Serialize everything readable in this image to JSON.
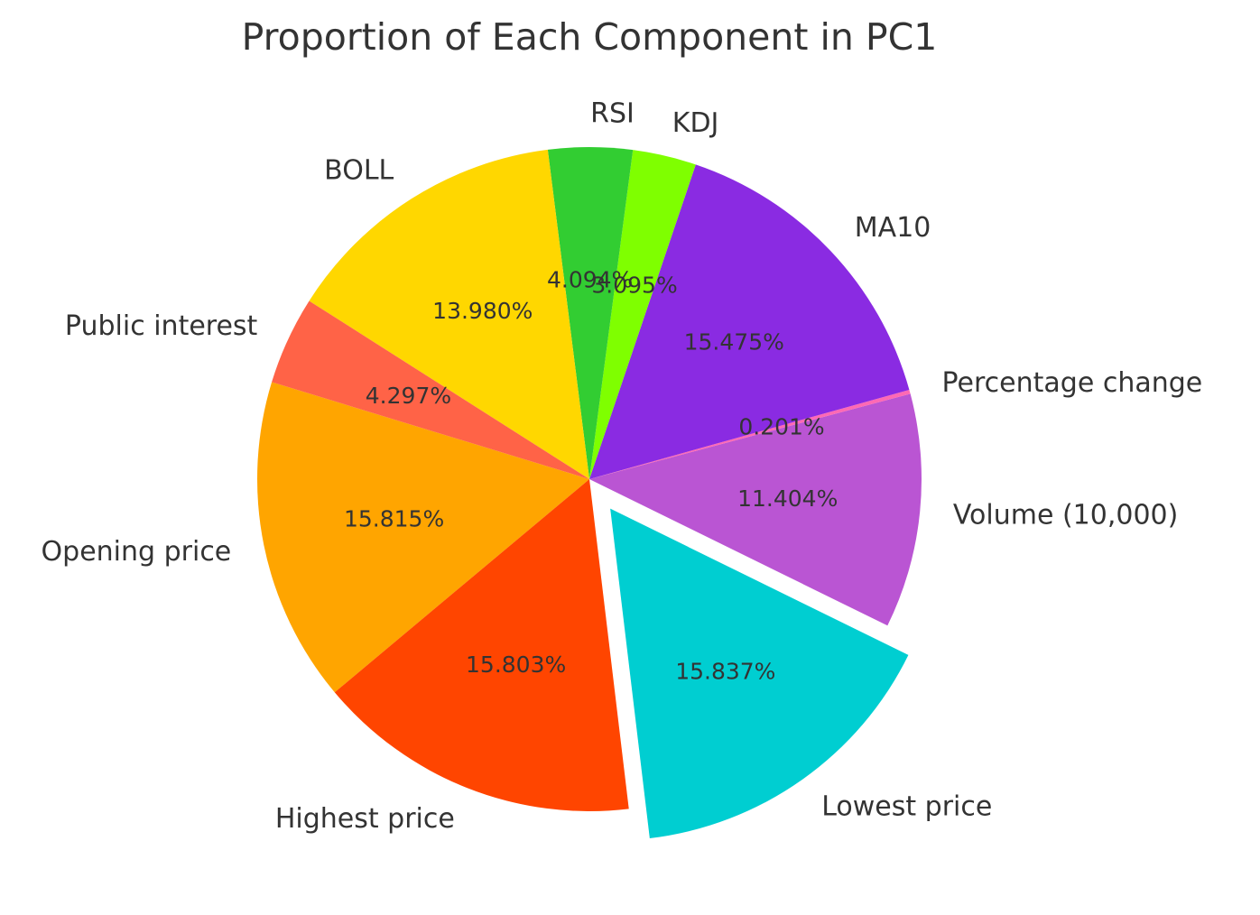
{
  "chart_data": {
    "type": "pie",
    "title": "Proportion of Each Component in PC1",
    "slices": [
      {
        "label": "Opening price",
        "value": 15.815,
        "pct_label": "15.815%",
        "color": "#FFA500"
      },
      {
        "label": "Highest price",
        "value": 15.803,
        "pct_label": "15.803%",
        "color": "#FF4500"
      },
      {
        "label": "Lowest price",
        "value": 15.837,
        "pct_label": "15.837%",
        "color": "#00CED1",
        "exploded": true
      },
      {
        "label": "Volume (10,000)",
        "value": 11.404,
        "pct_label": "11.404%",
        "color": "#BA55D3"
      },
      {
        "label": "Percentage change",
        "value": 0.201,
        "pct_label": "0.201%",
        "color": "#FF69B4"
      },
      {
        "label": "MA10",
        "value": 15.475,
        "pct_label": "15.475%",
        "color": "#8A2BE2"
      },
      {
        "label": "KDJ",
        "value": 3.095,
        "pct_label": "3.095%",
        "color": "#7FFF00"
      },
      {
        "label": "RSI",
        "value": 4.094,
        "pct_label": "4.094%",
        "color": "#32CD32"
      },
      {
        "label": "BOLL",
        "value": 13.98,
        "pct_label": "13.980%",
        "color": "#FFD700"
      },
      {
        "label": "Public interest",
        "value": 4.297,
        "pct_label": "4.297%",
        "color": "#FF6347"
      }
    ],
    "start_angle_deg": 163,
    "direction": "counterclockwise",
    "legend": "none"
  }
}
